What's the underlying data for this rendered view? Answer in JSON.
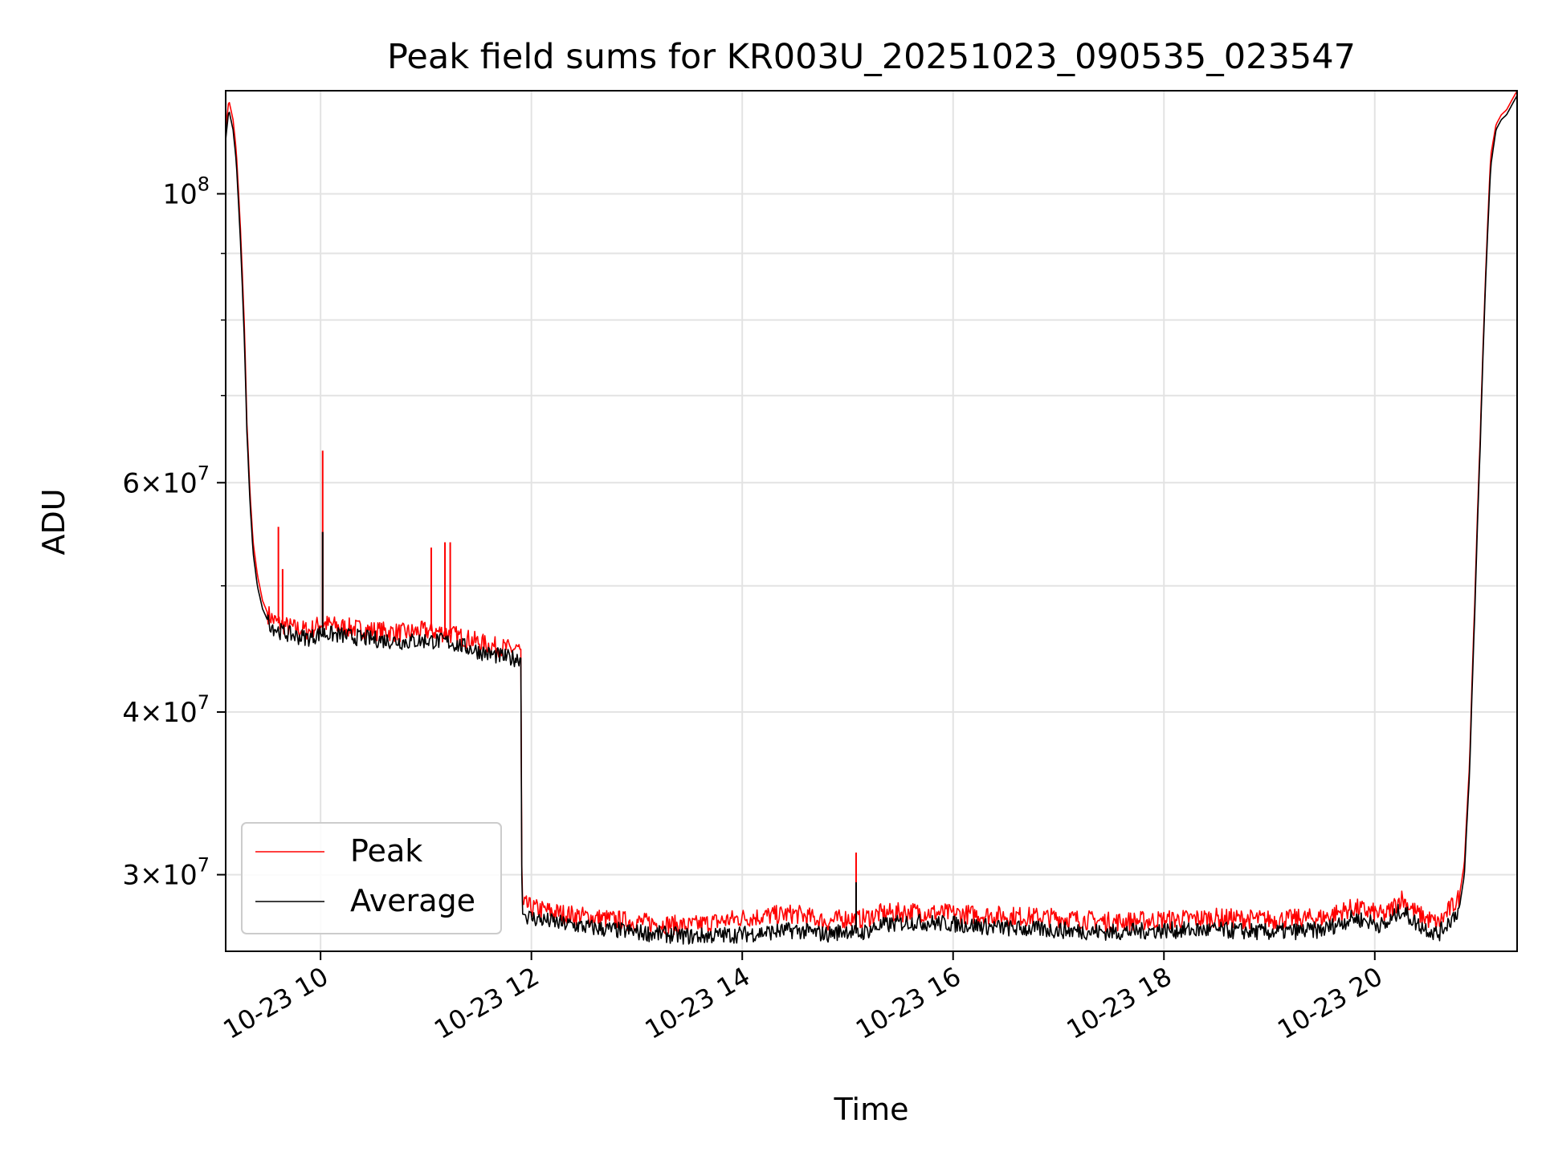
{
  "chart_data": {
    "type": "line",
    "title": "Peak field sums for KR003U_20251023_090535_023547",
    "xlabel": "Time",
    "ylabel": "ADU",
    "x_units": "hours since 2025-10-23 00:00",
    "xlim": [
      9.1,
      21.35
    ],
    "ylim": [
      26.2,
      120.0
    ],
    "y_units": "×10^6 ADU",
    "y_scale": "log",
    "grid": true,
    "legend_position": "lower-left",
    "x_ticks": [
      {
        "value": 10,
        "label": "10-23 10"
      },
      {
        "value": 12,
        "label": "10-23 12"
      },
      {
        "value": 14,
        "label": "10-23 14"
      },
      {
        "value": 16,
        "label": "10-23 16"
      },
      {
        "value": 18,
        "label": "10-23 18"
      },
      {
        "value": 20,
        "label": "10-23 20"
      }
    ],
    "y_ticks": [
      {
        "value": 30,
        "base": "3",
        "exp": "7"
      },
      {
        "value": 40,
        "base": "4",
        "exp": "7"
      },
      {
        "value": 60,
        "base": "6",
        "exp": "7"
      },
      {
        "value": 100,
        "base": "10",
        "exp": "8"
      }
    ],
    "y_minor_ticks": [
      50,
      70,
      80,
      90
    ],
    "series": [
      {
        "name": "Average",
        "color": "#000000",
        "x": [
          9.1,
          9.13,
          9.17,
          9.2,
          9.24,
          9.28,
          9.3,
          9.33,
          9.36,
          9.4,
          9.45,
          9.5,
          9.55,
          9.6,
          9.7,
          9.8,
          9.9,
          10.0,
          10.2,
          10.5,
          10.8,
          11.0,
          11.2,
          11.4,
          11.6,
          11.8,
          11.9,
          11.91,
          12.0,
          12.3,
          12.6,
          13.0,
          13.5,
          14.0,
          14.5,
          14.8,
          15.0,
          15.1,
          15.3,
          15.6,
          16.0,
          16.5,
          17.0,
          17.5,
          18.0,
          18.5,
          19.0,
          19.5,
          19.8,
          20.1,
          20.25,
          20.4,
          20.6,
          20.8,
          20.85,
          20.9,
          20.95,
          21.0,
          21.05,
          21.1,
          21.15,
          21.2,
          21.25,
          21.3,
          21.35
        ],
        "y": [
          110,
          116,
          112,
          106,
          92,
          76,
          66,
          58,
          53,
          50,
          48,
          47,
          46.5,
          46.2,
          45.9,
          45.7,
          45.6,
          46.0,
          45.8,
          45.5,
          45.3,
          45.4,
          45.3,
          44.8,
          44.3,
          44.0,
          44.0,
          28.0,
          27.8,
          27.5,
          27.3,
          27.1,
          26.9,
          27.0,
          27.2,
          27.0,
          27.2,
          27.0,
          27.4,
          27.6,
          27.5,
          27.3,
          27.2,
          27.1,
          27.2,
          27.2,
          27.1,
          27.2,
          27.8,
          27.4,
          28.2,
          27.5,
          27.0,
          28.2,
          30.0,
          36.0,
          48.0,
          64.0,
          85.0,
          105.0,
          112.0,
          114.0,
          115.0,
          117.0,
          119.0
        ]
      },
      {
        "name": "Peak",
        "color": "#ff0000",
        "x": [
          9.1,
          9.13,
          9.17,
          9.2,
          9.24,
          9.28,
          9.3,
          9.33,
          9.36,
          9.4,
          9.45,
          9.5,
          9.55,
          9.6,
          9.7,
          9.8,
          9.9,
          10.0,
          10.2,
          10.5,
          10.8,
          11.0,
          11.2,
          11.4,
          11.6,
          11.8,
          11.9,
          11.91,
          12.0,
          12.3,
          12.6,
          13.0,
          13.5,
          14.0,
          14.5,
          14.8,
          15.0,
          15.1,
          15.3,
          15.6,
          16.0,
          16.5,
          17.0,
          17.5,
          18.0,
          18.5,
          19.0,
          19.5,
          19.8,
          20.1,
          20.25,
          20.4,
          20.6,
          20.8,
          20.85,
          20.9,
          20.95,
          21.0,
          21.05,
          21.1,
          21.15,
          21.2,
          21.25,
          21.3,
          21.35
        ],
        "y": [
          112,
          118,
          114,
          108,
          94,
          78,
          67,
          59,
          54,
          51,
          48.7,
          47.6,
          47.1,
          46.8,
          46.5,
          46.3,
          46.2,
          46.8,
          46.5,
          46.2,
          46.0,
          46.2,
          46.0,
          45.5,
          45.0,
          44.7,
          44.7,
          28.5,
          28.3,
          28.0,
          27.8,
          27.6,
          27.4,
          27.8,
          28.0,
          27.6,
          27.8,
          27.7,
          28.0,
          28.1,
          28.0,
          27.9,
          27.8,
          27.6,
          27.7,
          27.8,
          27.7,
          27.8,
          28.3,
          27.9,
          28.8,
          28.0,
          27.5,
          28.8,
          30.6,
          36.6,
          49.0,
          65.0,
          86.0,
          107.0,
          113.0,
          115.0,
          116.0,
          118.0,
          120.0
        ],
        "spikes": [
          {
            "x": 9.6,
            "y": 55.5
          },
          {
            "x": 9.64,
            "y": 51.5
          },
          {
            "x": 10.02,
            "y": 63.5
          },
          {
            "x": 10.02,
            "y": 55.0
          },
          {
            "x": 11.05,
            "y": 53.5
          },
          {
            "x": 11.18,
            "y": 54.0
          },
          {
            "x": 11.23,
            "y": 54.0
          },
          {
            "x": 15.08,
            "y": 31.2
          },
          {
            "x": 15.08,
            "y": 29.6
          }
        ]
      }
    ]
  }
}
